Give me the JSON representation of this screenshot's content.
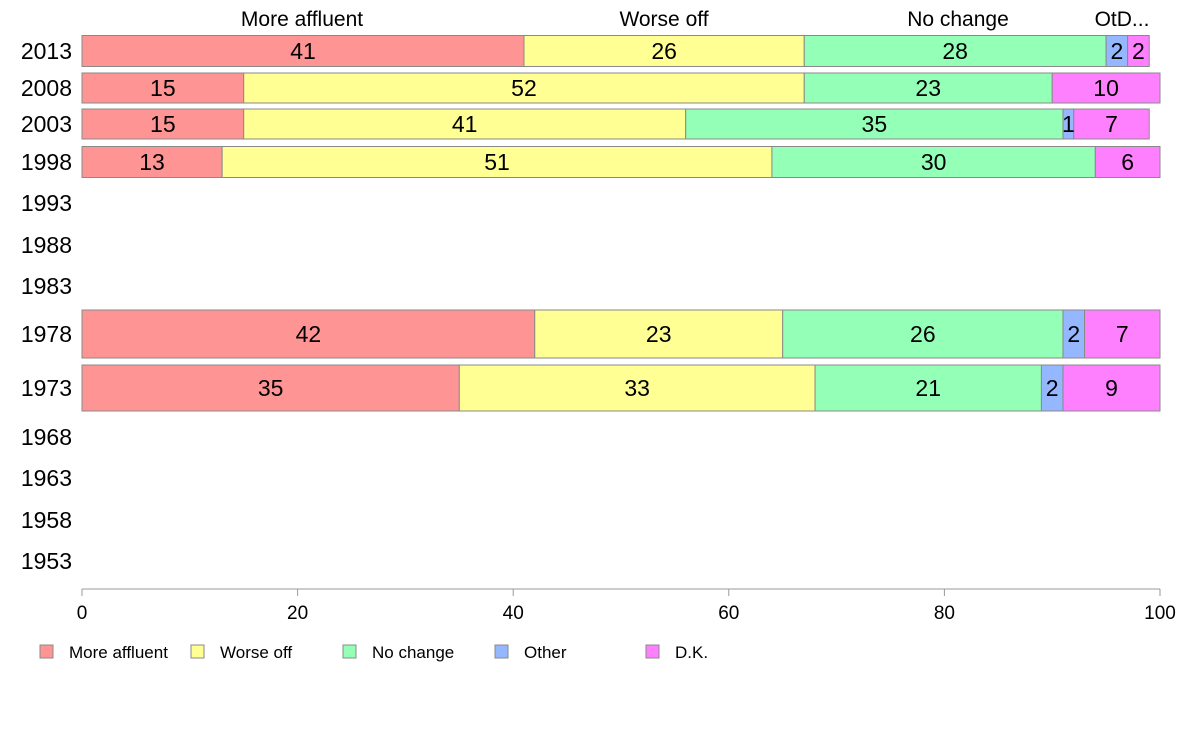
{
  "chart_data": {
    "type": "bar",
    "orientation": "horizontal",
    "stacked": true,
    "categories": [
      "2013",
      "2008",
      "2003",
      "1998",
      "1993",
      "1988",
      "1983",
      "1978",
      "1973",
      "1968",
      "1963",
      "1958",
      "1953"
    ],
    "series": [
      {
        "name": "More affluent",
        "color": "#ff9494",
        "values": [
          41,
          15,
          15,
          13,
          null,
          null,
          null,
          42,
          35,
          null,
          null,
          null,
          null
        ]
      },
      {
        "name": "Worse off",
        "color": "#ffff94",
        "values": [
          26,
          52,
          41,
          51,
          null,
          null,
          null,
          23,
          33,
          null,
          null,
          null,
          null
        ]
      },
      {
        "name": "No change",
        "color": "#94ffb7",
        "values": [
          28,
          23,
          35,
          30,
          null,
          null,
          null,
          26,
          21,
          null,
          null,
          null,
          null
        ]
      },
      {
        "name": "Other",
        "color": "#94b7ff",
        "values": [
          2,
          0,
          1,
          0,
          null,
          null,
          null,
          2,
          2,
          null,
          null,
          null,
          null
        ]
      },
      {
        "name": "D.K.",
        "color": "#ff80ff",
        "values": [
          2,
          10,
          7,
          6,
          null,
          null,
          null,
          7,
          9,
          null,
          null,
          null,
          null
        ]
      }
    ],
    "top_labels": [
      "More affluent",
      "Worse off",
      "No change",
      "OtD..."
    ],
    "xlim": [
      0,
      100
    ],
    "x_ticks": [
      "0",
      "20",
      "40",
      "60",
      "80",
      "100"
    ],
    "grid": false,
    "legend_position": "bottom-left"
  }
}
